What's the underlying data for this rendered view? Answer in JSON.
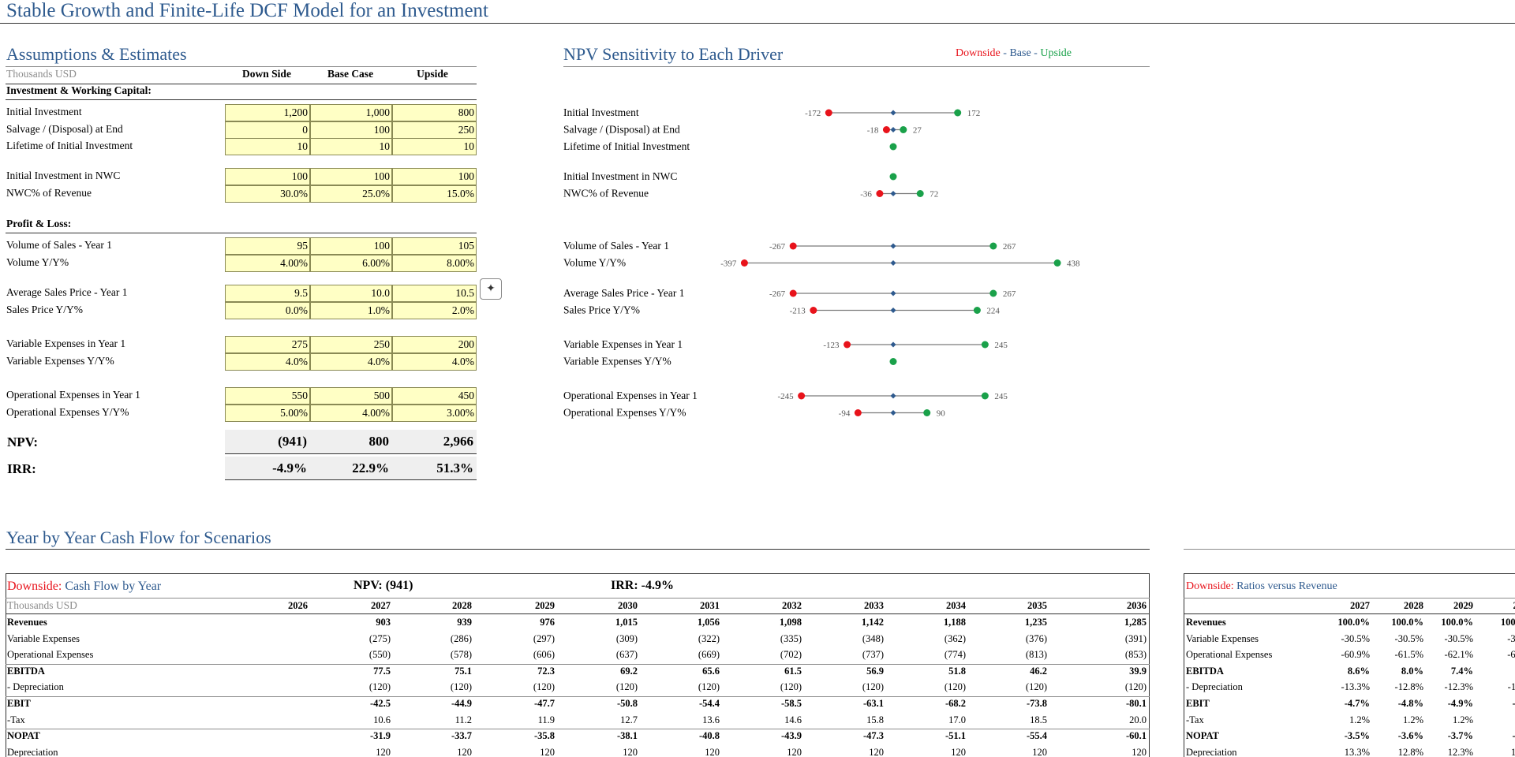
{
  "page_title": "Stable Growth and Finite-Life DCF Model for an Investment",
  "assumptions": {
    "title": "Assumptions & Estimates",
    "units": "Thousands USD",
    "columns": [
      "Down Side",
      "Base Case",
      "Upside"
    ],
    "groups": [
      {
        "heading": "Investment & Working Capital:",
        "rows": [
          {
            "label": "Initial Investment",
            "values": [
              "1,200",
              "1,000",
              "800"
            ]
          },
          {
            "label": "Salvage / (Disposal) at End",
            "values": [
              "0",
              "100",
              "250"
            ]
          },
          {
            "label": "Lifetime of Initial Investment",
            "values": [
              "10",
              "10",
              "10"
            ]
          }
        ]
      },
      {
        "heading": "",
        "rows": [
          {
            "label": "Initial Investment in NWC",
            "values": [
              "100",
              "100",
              "100"
            ]
          },
          {
            "label": "NWC% of Revenue",
            "values": [
              "30.0%",
              "25.0%",
              "15.0%"
            ]
          }
        ]
      },
      {
        "heading": "Profit & Loss:",
        "rows": [
          {
            "label": "Volume of Sales - Year 1",
            "values": [
              "95",
              "100",
              "105"
            ]
          },
          {
            "label": "Volume Y/Y%",
            "values": [
              "4.00%",
              "6.00%",
              "8.00%"
            ]
          }
        ]
      },
      {
        "heading": "",
        "rows": [
          {
            "label": "Average Sales Price - Year 1",
            "values": [
              "9.5",
              "10.0",
              "10.5"
            ]
          },
          {
            "label": "Sales Price Y/Y%",
            "values": [
              "0.0%",
              "1.0%",
              "2.0%"
            ]
          }
        ]
      },
      {
        "heading": "",
        "rows": [
          {
            "label": "Variable Expenses in Year 1",
            "values": [
              "275",
              "250",
              "200"
            ]
          },
          {
            "label": "Variable Expenses Y/Y%",
            "values": [
              "4.0%",
              "4.0%",
              "4.0%"
            ]
          }
        ]
      },
      {
        "heading": "",
        "rows": [
          {
            "label": "Operational Expenses in Year 1",
            "values": [
              "550",
              "500",
              "450"
            ]
          },
          {
            "label": "Operational Expenses Y/Y%",
            "values": [
              "5.00%",
              "4.00%",
              "3.00%"
            ]
          }
        ]
      }
    ],
    "npv_label": "NPV:",
    "npv_values": [
      "(941)",
      "800",
      "2,966"
    ],
    "irr_label": "IRR:",
    "irr_values": [
      "-4.9%",
      "22.9%",
      "51.3%"
    ]
  },
  "sensitivity": {
    "title": "NPV Sensitivity to Each Driver",
    "legend_down": "Downside",
    "legend_sep1": " - ",
    "legend_base": "Base",
    "legend_sep2": " - ",
    "legend_up": "Upside",
    "colors": {
      "down": "#e8131b",
      "base": "#2e5a8e",
      "up": "#1aa14a",
      "line": "#7a7a7a"
    }
  },
  "chart_data": {
    "type": "dot-range",
    "title": "NPV Sensitivity to Each Driver",
    "series": [
      {
        "name": "Downside"
      },
      {
        "name": "Base"
      },
      {
        "name": "Upside"
      }
    ],
    "rows": [
      {
        "label": "Initial Investment",
        "down": -172,
        "up": 172,
        "down_label": "-172",
        "up_label": "172"
      },
      {
        "label": "Salvage / (Disposal) at End",
        "down": -18,
        "up": 27,
        "down_label": "-18",
        "up_label": "27"
      },
      {
        "label": "Lifetime of Initial Investment",
        "down": 0,
        "up": 0,
        "down_label": "",
        "up_label": ""
      },
      {
        "label": "Initial Investment in NWC",
        "down": 0,
        "up": 0,
        "down_label": "",
        "up_label": ""
      },
      {
        "label": "NWC% of Revenue",
        "down": -36,
        "up": 72,
        "down_label": "-36",
        "up_label": "72"
      },
      {
        "label": "Volume of Sales - Year 1",
        "down": -267,
        "up": 267,
        "down_label": "-267",
        "up_label": "267"
      },
      {
        "label": "Volume Y/Y%",
        "down": -397,
        "up": 438,
        "down_label": "-397",
        "up_label": "438"
      },
      {
        "label": "Average Sales Price - Year 1",
        "down": -267,
        "up": 267,
        "down_label": "-267",
        "up_label": "267"
      },
      {
        "label": "Sales Price Y/Y%",
        "down": -213,
        "up": 224,
        "down_label": "-213",
        "up_label": "224"
      },
      {
        "label": "Variable Expenses in Year 1",
        "down": -123,
        "up": 245,
        "down_label": "-123",
        "up_label": "245"
      },
      {
        "label": "Variable Expenses Y/Y%",
        "down": 0,
        "up": 0,
        "down_label": "",
        "up_label": ""
      },
      {
        "label": "Operational Expenses in Year 1",
        "down": -245,
        "up": 245,
        "down_label": "-245",
        "up_label": "245"
      },
      {
        "label": "Operational Expenses Y/Y%",
        "down": -94,
        "up": 90,
        "down_label": "-94",
        "up_label": "90"
      }
    ]
  },
  "cashflow": {
    "title": "Year by Year Cash Flow for Scenarios",
    "scenario": "Downside:",
    "subtitle": "Cash Flow by Year",
    "npv_text": "NPV: (941)",
    "irr_text": "IRR: -4.9%",
    "units": "Thousands USD",
    "years": [
      "2026",
      "2027",
      "2028",
      "2029",
      "2030",
      "2031",
      "2032",
      "2033",
      "2034",
      "2035",
      "2036"
    ],
    "rows": [
      {
        "label": "Revenues",
        "bold": true,
        "values": [
          "",
          "903",
          "939",
          "976",
          "1,015",
          "1,056",
          "1,098",
          "1,142",
          "1,188",
          "1,235",
          "1,285"
        ]
      },
      {
        "label": "Variable Expenses",
        "bold": false,
        "values": [
          "",
          "(275)",
          "(286)",
          "(297)",
          "(309)",
          "(322)",
          "(335)",
          "(348)",
          "(362)",
          "(376)",
          "(391)"
        ]
      },
      {
        "label": "Operational Expenses",
        "bold": false,
        "values": [
          "",
          "(550)",
          "(578)",
          "(606)",
          "(637)",
          "(669)",
          "(702)",
          "(737)",
          "(774)",
          "(813)",
          "(853)"
        ]
      },
      {
        "label": "EBITDA",
        "bold": true,
        "values": [
          "",
          "77.5",
          "75.1",
          "72.3",
          "69.2",
          "65.6",
          "61.5",
          "56.9",
          "51.8",
          "46.2",
          "39.9"
        ]
      },
      {
        "label": " - Depreciation",
        "bold": false,
        "values": [
          "",
          "(120)",
          "(120)",
          "(120)",
          "(120)",
          "(120)",
          "(120)",
          "(120)",
          "(120)",
          "(120)",
          "(120)"
        ]
      },
      {
        "label": "EBIT",
        "bold": true,
        "values": [
          "",
          "-42.5",
          "-44.9",
          "-47.7",
          "-50.8",
          "-54.4",
          "-58.5",
          "-63.1",
          "-68.2",
          "-73.8",
          "-80.1"
        ]
      },
      {
        "label": "-Tax",
        "bold": false,
        "values": [
          "",
          "10.6",
          "11.2",
          "11.9",
          "12.7",
          "13.6",
          "14.6",
          "15.8",
          "17.0",
          "18.5",
          "20.0"
        ]
      },
      {
        "label": "NOPAT",
        "bold": true,
        "values": [
          "",
          "-31.9",
          "-33.7",
          "-35.8",
          "-38.1",
          "-40.8",
          "-43.9",
          "-47.3",
          "-51.1",
          "-55.4",
          "-60.1"
        ]
      },
      {
        "label": "Depreciation",
        "bold": false,
        "values": [
          "",
          "120",
          "120",
          "120",
          "120",
          "120",
          "120",
          "120",
          "120",
          "120",
          "120"
        ]
      }
    ]
  },
  "ratios": {
    "scenario": "Downside:",
    "subtitle": "Ratios versus Revenue",
    "years": [
      "2027",
      "2028",
      "2029",
      "20"
    ],
    "rows": [
      {
        "label": "Revenues",
        "bold": true,
        "values": [
          "100.0%",
          "100.0%",
          "100.0%",
          "100.0"
        ]
      },
      {
        "label": "Variable Expenses",
        "bold": false,
        "values": [
          "-30.5%",
          "-30.5%",
          "-30.5%",
          "-30."
        ]
      },
      {
        "label": "Operational Expenses",
        "bold": false,
        "values": [
          "-60.9%",
          "-61.5%",
          "-62.1%",
          "-62."
        ]
      },
      {
        "label": "EBITDA",
        "bold": true,
        "values": [
          "8.6%",
          "8.0%",
          "7.4%",
          "6."
        ]
      },
      {
        "label": " - Depreciation",
        "bold": false,
        "values": [
          "-13.3%",
          "-12.8%",
          "-12.3%",
          "-11."
        ]
      },
      {
        "label": "EBIT",
        "bold": true,
        "values": [
          "-4.7%",
          "-4.8%",
          "-4.9%",
          "-5."
        ]
      },
      {
        "label": "-Tax",
        "bold": false,
        "values": [
          "1.2%",
          "1.2%",
          "1.2%",
          "1."
        ]
      },
      {
        "label": "NOPAT",
        "bold": true,
        "values": [
          "-3.5%",
          "-3.6%",
          "-3.7%",
          "-3."
        ]
      },
      {
        "label": "Depreciation",
        "bold": false,
        "values": [
          "13.3%",
          "12.8%",
          "12.3%",
          "11."
        ]
      }
    ]
  }
}
